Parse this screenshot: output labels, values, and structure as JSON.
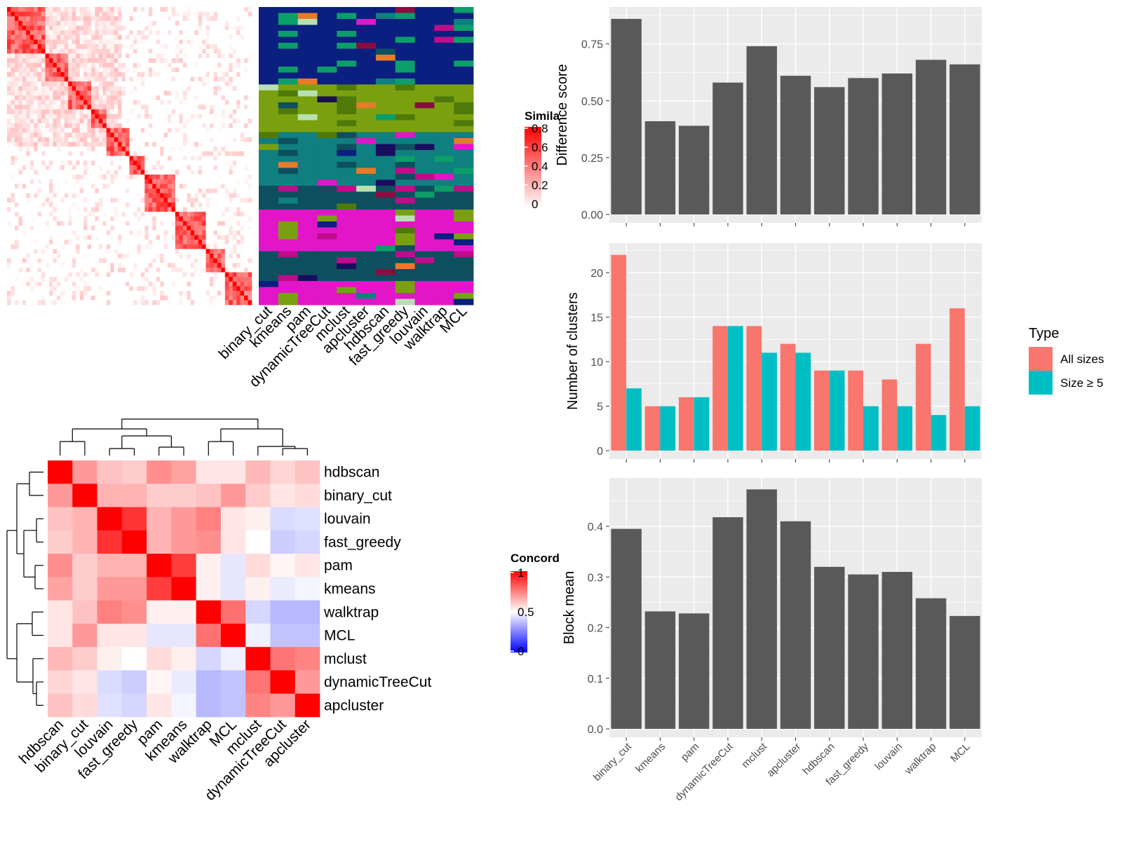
{
  "colors": {
    "panel_bg": "#ebebeb",
    "grid": "#ffffff",
    "bar_gray": "#595959",
    "all_sizes": "#f8766d",
    "size_ge5": "#00bfc4",
    "heat_high": "#ff0000",
    "heat_low": "#0000ff",
    "membership_palette": [
      "#0a1f7f",
      "#0c9e69",
      "#e315c8",
      "#7aa00f",
      "#4f7a0a",
      "#0f7f7f",
      "#0d4f5f",
      "#bd0d8a",
      "#e87a2a",
      "#1a0d5f",
      "#8a0d3f",
      "#b8e0b0"
    ]
  },
  "top_left": {
    "legend_title": "Simila",
    "legend_ticks": [
      "0.8",
      "0.6",
      "0.4",
      "0.2",
      "0"
    ],
    "method_labels": [
      "binary_cut",
      "kmeans",
      "pam",
      "dynamicTreeCut",
      "mclust",
      "apcluster",
      "hdbscan",
      "fast_greedy",
      "louvain",
      "walktrap",
      "MCL"
    ]
  },
  "bottom_left": {
    "legend_title": "Concord",
    "legend_ticks": [
      "1",
      "0.5",
      "0"
    ],
    "row_labels": [
      "hdbscan",
      "binary_cut",
      "louvain",
      "fast_greedy",
      "pam",
      "kmeans",
      "walktrap",
      "MCL",
      "mclust",
      "dynamicTreeCut",
      "apcluster"
    ],
    "col_labels": [
      "hdbscan",
      "binary_cut",
      "louvain",
      "fast_greedy",
      "pam",
      "kmeans",
      "walktrap",
      "MCL",
      "mclust",
      "dynamicTreeCut",
      "apcluster"
    ]
  },
  "legend": {
    "title": "Type",
    "items": [
      {
        "label": "All sizes",
        "color": "#f8766d"
      },
      {
        "label": "Size ≥ 5",
        "color": "#00bfc4"
      }
    ]
  },
  "chart_data": [
    {
      "type": "heatmap",
      "name": "concordance",
      "legend_title": "Concord",
      "value_range": [
        0,
        1
      ],
      "rows": [
        "hdbscan",
        "binary_cut",
        "louvain",
        "fast_greedy",
        "pam",
        "kmeans",
        "walktrap",
        "MCL",
        "mclust",
        "dynamicTreeCut",
        "apcluster"
      ],
      "cols": [
        "hdbscan",
        "binary_cut",
        "louvain",
        "fast_greedy",
        "pam",
        "kmeans",
        "walktrap",
        "MCL",
        "mclust",
        "dynamicTreeCut",
        "apcluster"
      ],
      "values": [
        [
          1.0,
          0.7,
          0.62,
          0.6,
          0.72,
          0.68,
          0.55,
          0.55,
          0.64,
          0.58,
          0.62
        ],
        [
          0.7,
          1.0,
          0.65,
          0.65,
          0.6,
          0.6,
          0.62,
          0.7,
          0.6,
          0.55,
          0.57
        ],
        [
          0.62,
          0.65,
          1.0,
          0.9,
          0.65,
          0.7,
          0.75,
          0.55,
          0.53,
          0.43,
          0.44
        ],
        [
          0.6,
          0.65,
          0.9,
          1.0,
          0.65,
          0.7,
          0.72,
          0.55,
          0.5,
          0.4,
          0.42
        ],
        [
          0.72,
          0.6,
          0.65,
          0.65,
          1.0,
          0.88,
          0.53,
          0.45,
          0.57,
          0.52,
          0.55
        ],
        [
          0.68,
          0.6,
          0.7,
          0.7,
          0.88,
          1.0,
          0.53,
          0.45,
          0.53,
          0.46,
          0.48
        ],
        [
          0.55,
          0.62,
          0.75,
          0.72,
          0.53,
          0.53,
          1.0,
          0.78,
          0.42,
          0.36,
          0.36
        ],
        [
          0.55,
          0.7,
          0.55,
          0.55,
          0.45,
          0.45,
          0.78,
          1.0,
          0.47,
          0.38,
          0.38
        ],
        [
          0.64,
          0.6,
          0.53,
          0.5,
          0.57,
          0.53,
          0.42,
          0.47,
          1.0,
          0.77,
          0.74
        ],
        [
          0.58,
          0.55,
          0.43,
          0.4,
          0.52,
          0.46,
          0.36,
          0.38,
          0.77,
          1.0,
          0.7
        ],
        [
          0.62,
          0.57,
          0.44,
          0.42,
          0.55,
          0.48,
          0.36,
          0.38,
          0.74,
          0.7,
          1.0
        ]
      ]
    },
    {
      "type": "bar",
      "name": "difference_score",
      "ylabel": "Difference score",
      "categories": [
        "binary_cut",
        "kmeans",
        "pam",
        "dynamicTreeCut",
        "mclust",
        "apcluster",
        "hdbscan",
        "fast_greedy",
        "louvain",
        "walktrap",
        "MCL"
      ],
      "values": [
        0.86,
        0.41,
        0.39,
        0.58,
        0.74,
        0.61,
        0.56,
        0.6,
        0.62,
        0.68,
        0.66
      ],
      "ylim": [
        0,
        0.9
      ],
      "yticks": [
        "0.00",
        "0.25",
        "0.50",
        "0.75"
      ]
    },
    {
      "type": "bar",
      "name": "number_of_clusters",
      "ylabel": "Number of clusters",
      "categories": [
        "binary_cut",
        "kmeans",
        "pam",
        "dynamicTreeCut",
        "mclust",
        "apcluster",
        "hdbscan",
        "fast_greedy",
        "louvain",
        "walktrap",
        "MCL"
      ],
      "series": [
        {
          "name": "All sizes",
          "values": [
            22,
            5,
            6,
            14,
            14,
            12,
            9,
            9,
            8,
            12,
            16
          ]
        },
        {
          "name": "Size ≥ 5",
          "values": [
            7,
            5,
            6,
            14,
            11,
            11,
            9,
            5,
            5,
            4,
            5
          ]
        }
      ],
      "ylim": [
        0,
        23
      ],
      "yticks": [
        "0",
        "5",
        "10",
        "15",
        "20"
      ]
    },
    {
      "type": "bar",
      "name": "block_mean",
      "ylabel": "Block mean",
      "categories": [
        "binary_cut",
        "kmeans",
        "pam",
        "dynamicTreeCut",
        "mclust",
        "apcluster",
        "hdbscan",
        "fast_greedy",
        "louvain",
        "walktrap",
        "MCL"
      ],
      "values": [
        0.395,
        0.232,
        0.228,
        0.418,
        0.473,
        0.41,
        0.32,
        0.305,
        0.31,
        0.258,
        0.223
      ],
      "ylim": [
        0,
        0.49
      ],
      "yticks": [
        "0.0",
        "0.1",
        "0.2",
        "0.3",
        "0.4"
      ]
    }
  ]
}
